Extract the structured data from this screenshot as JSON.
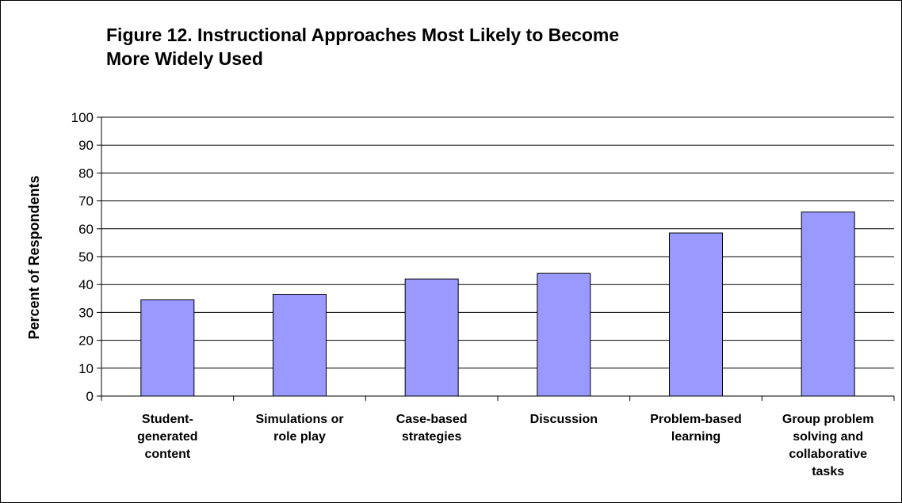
{
  "chart_data": {
    "type": "bar",
    "title": "Figure 12. Instructional Approaches Most Likely to Become More Widely Used",
    "xlabel": "",
    "ylabel": "Percent of Respondents",
    "ylim": [
      0,
      100
    ],
    "yticks": [
      0,
      10,
      20,
      30,
      40,
      50,
      60,
      70,
      80,
      90,
      100
    ],
    "categories": [
      "Student-generated content",
      "Simulations or role play",
      "Case-based strategies",
      "Discussion",
      "Problem-based learning",
      "Group problem solving and collaborative tasks"
    ],
    "category_lines": [
      [
        "Student-",
        "generated",
        "content"
      ],
      [
        "Simulations or",
        "role play"
      ],
      [
        "Case-based",
        "strategies"
      ],
      [
        "Discussion"
      ],
      [
        "Problem-based",
        "learning"
      ],
      [
        "Group problem",
        "solving and",
        "collaborative",
        "tasks"
      ]
    ],
    "values": [
      34.5,
      36.5,
      42,
      44,
      58.5,
      66
    ],
    "bar_color": "#9999ff",
    "grid": true,
    "legend": "none"
  }
}
